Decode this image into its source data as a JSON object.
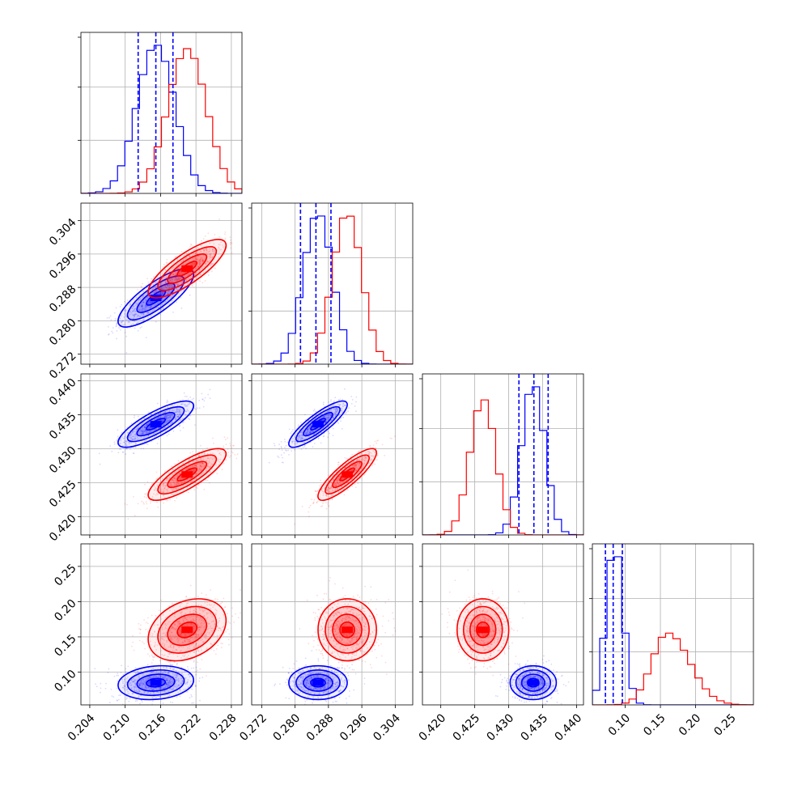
{
  "chart_data": {
    "type": "corner",
    "title": "",
    "n_params": 4,
    "series": [
      {
        "color": "#0000ff",
        "means": [
          0.2152,
          0.2855,
          0.4336,
          0.085
        ],
        "sds": [
          0.0032,
          0.0035,
          0.0017,
          0.012
        ]
      },
      {
        "color": "#ff0000",
        "means": [
          0.2205,
          0.2925,
          0.4262,
          0.16
        ],
        "sds": [
          0.0033,
          0.0035,
          0.0019,
          0.022
        ]
      }
    ],
    "quantiles_color": "#0000ff",
    "quantiles": [
      [
        0.2122,
        0.2152,
        0.2181
      ],
      [
        0.2813,
        0.285,
        0.2886
      ],
      [
        0.4315,
        0.4337,
        0.4358
      ],
      [
        0.072,
        0.083,
        0.096
      ]
    ],
    "ranges": [
      [
        0.2025,
        0.2298
      ],
      [
        0.2696,
        0.3082
      ],
      [
        0.4173,
        0.441
      ],
      [
        0.0535,
        0.282
      ]
    ],
    "ticks": [
      {
        "values": [
          0.204,
          0.21,
          0.216,
          0.222,
          0.228
        ],
        "labels": [
          "0.204",
          "0.210",
          "0.216",
          "0.222",
          "0.228"
        ]
      },
      {
        "values": [
          0.272,
          0.28,
          0.288,
          0.296,
          0.304
        ],
        "labels": [
          "0.272",
          "0.280",
          "0.288",
          "0.296",
          "0.304"
        ]
      },
      {
        "values": [
          0.42,
          0.425,
          0.43,
          0.435,
          0.44
        ],
        "labels": [
          "0.420",
          "0.425",
          "0.430",
          "0.435",
          "0.440"
        ]
      },
      {
        "values": [
          0.1,
          0.15,
          0.2,
          0.25
        ],
        "labels": [
          "0.10",
          "0.15",
          "0.20",
          "0.25"
        ]
      }
    ],
    "correlations": {
      "0-1": [
        0.8,
        0.8
      ],
      "0-2": [
        0.8,
        0.8
      ],
      "1-2": [
        0.85,
        0.85
      ],
      "0-3": [
        0.15,
        0.3
      ],
      "1-3": [
        0.0,
        0.0
      ],
      "2-3": [
        0.0,
        0.0
      ]
    },
    "grid": true
  }
}
